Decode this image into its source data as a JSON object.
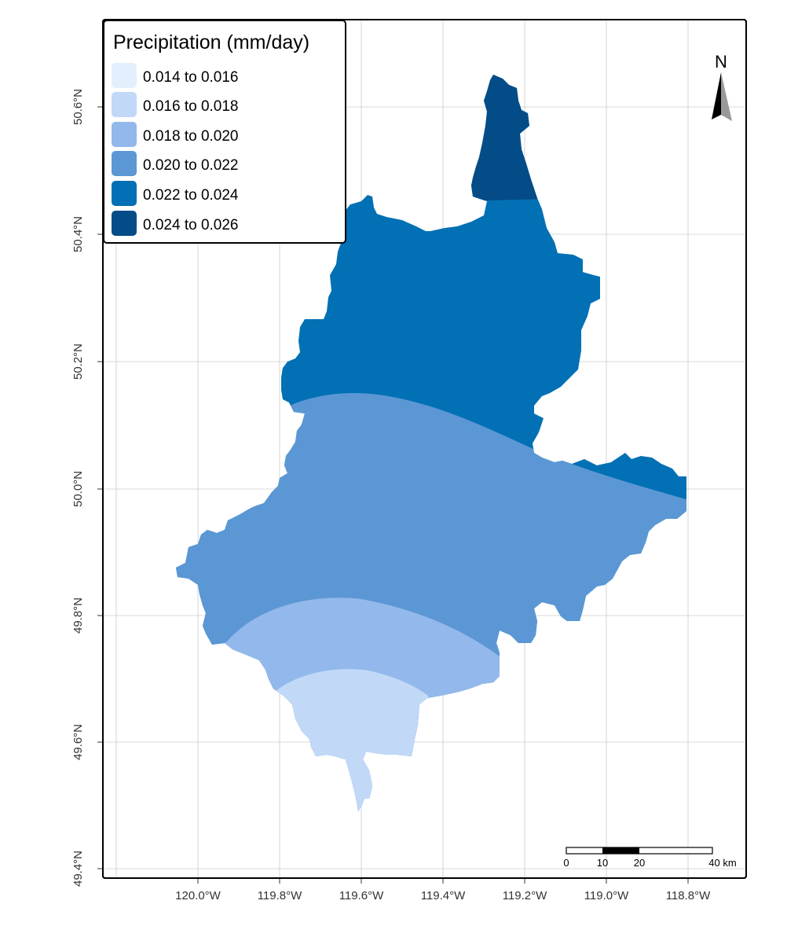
{
  "legend": {
    "title": "Precipitation (mm/day)",
    "items": [
      {
        "label": "0.014 to 0.016",
        "color": "#e3effc"
      },
      {
        "label": "0.016 to 0.018",
        "color": "#c1d8f7"
      },
      {
        "label": "0.018 to 0.020",
        "color": "#93b8eb"
      },
      {
        "label": "0.020 to 0.022",
        "color": "#5b97d4"
      },
      {
        "label": "0.022 to 0.024",
        "color": "#0270b4"
      },
      {
        "label": "0.024 to 0.026",
        "color": "#034c87"
      }
    ]
  },
  "north_arrow": {
    "label": "N"
  },
  "axes": {
    "x_ticks": [
      "120.0°W",
      "119.8°W",
      "119.6°W",
      "119.4°W",
      "119.2°W",
      "119.0°W",
      "118.8°W"
    ],
    "y_ticks": [
      "50.6°N",
      "50.4°N",
      "50.2°N",
      "50.0°N",
      "49.8°N",
      "49.6°N",
      "49.4°N"
    ]
  },
  "scale_bar": {
    "labels": [
      "0",
      "10",
      "20",
      "40 km"
    ]
  }
}
